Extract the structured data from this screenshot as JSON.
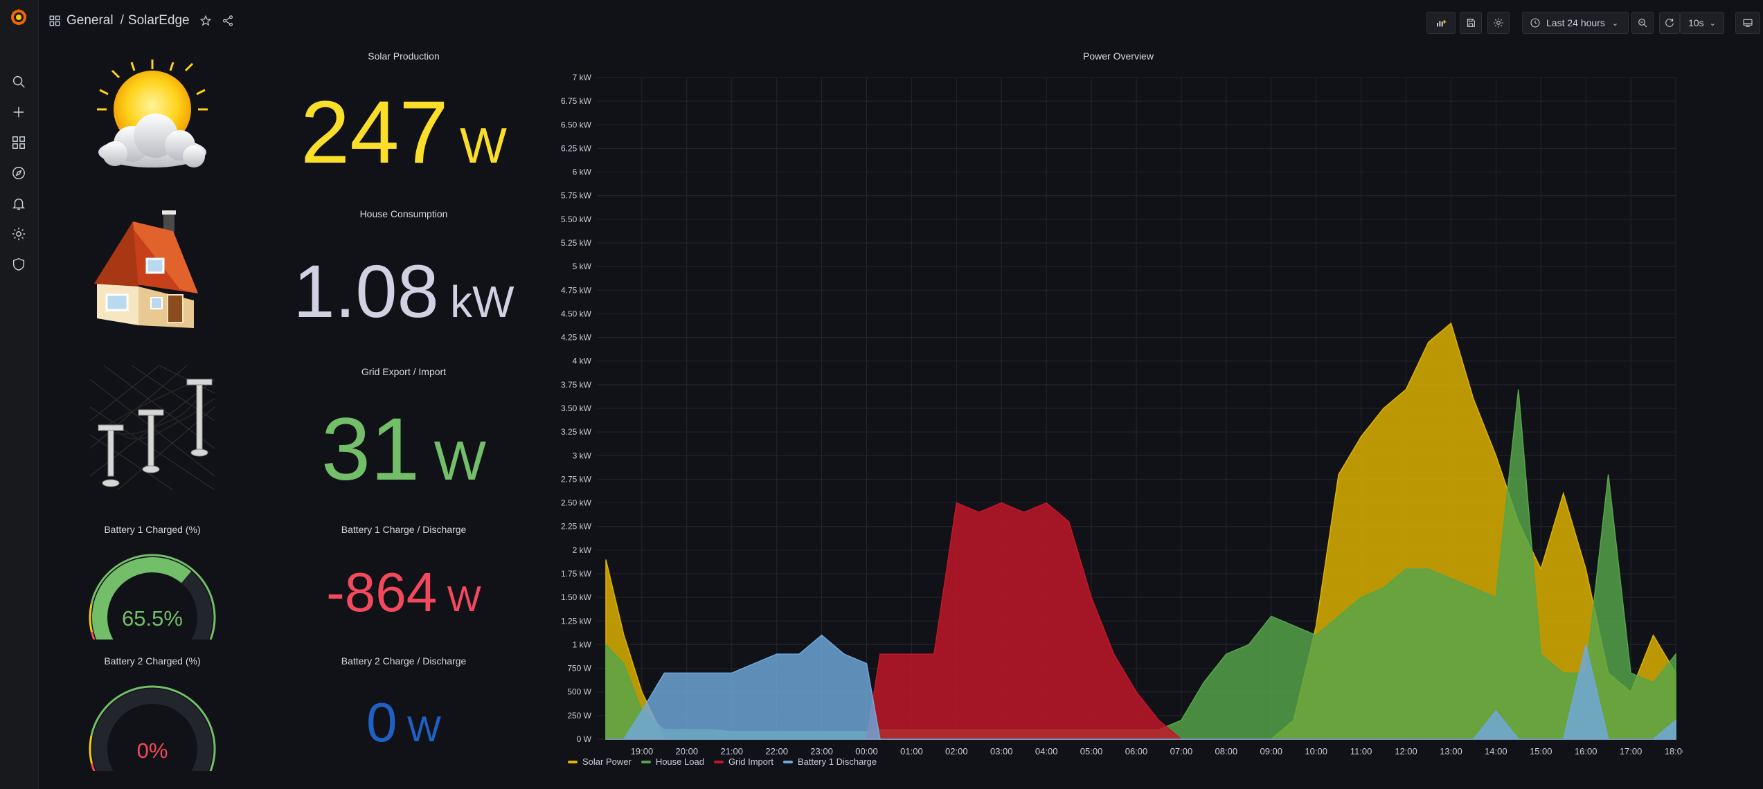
{
  "breadcrumb": {
    "folder": "General",
    "separator": "/",
    "dashboard": "SolarEdge"
  },
  "toolbar": {
    "time_range": "Last 24 hours",
    "refresh_interval": "10s"
  },
  "sidebar_icons": [
    "grafana-logo-icon",
    "search-icon",
    "plus-icon",
    "dashboards-icon",
    "explore-icon",
    "alert-bell-icon",
    "gear-icon",
    "shield-icon"
  ],
  "panels": {
    "solar": {
      "title": "Solar Production",
      "value": "247",
      "unit": "W",
      "color": "#fade2a"
    },
    "house": {
      "title": "House Consumption",
      "value": "1.08",
      "unit": "kW",
      "color": "#d0d1e2"
    },
    "grid": {
      "title": "Grid Export / Import",
      "value": "31",
      "unit": "W",
      "color": "#73bf69"
    },
    "bat1_charge": {
      "title": "Battery 1 Charge / Discharge",
      "value": "-864",
      "unit": "W",
      "color": "#f2495c"
    },
    "bat2_charge": {
      "title": "Battery 2 Charge / Discharge",
      "value": "0",
      "unit": "W",
      "color": "#1f60c4"
    },
    "bat1_gauge": {
      "title": "Battery 1 Charged (%)",
      "value": "65.5%",
      "percent": 65.5,
      "color": "#73bf69"
    },
    "bat2_gauge": {
      "title": "Battery 2 Charged (%)",
      "value": "0%",
      "percent": 0,
      "color": "#f2495c"
    }
  },
  "chart_data": {
    "type": "area",
    "title": "Power Overview",
    "y_ticks": [
      "0 W",
      "250 W",
      "500 W",
      "750 W",
      "1 kW",
      "1.25 kW",
      "1.50 kW",
      "1.75 kW",
      "2 kW",
      "2.25 kW",
      "2.50 kW",
      "2.75 kW",
      "3 kW",
      "3.25 kW",
      "3.50 kW",
      "3.75 kW",
      "4 kW",
      "4.25 kW",
      "4.50 kW",
      "4.75 kW",
      "5 kW",
      "5.25 kW",
      "5.50 kW",
      "5.75 kW",
      "6 kW",
      "6.25 kW",
      "6.50 kW",
      "6.75 kW",
      "7 kW"
    ],
    "ylim": [
      0,
      7000
    ],
    "x_ticks": [
      "19:00",
      "20:00",
      "21:00",
      "22:00",
      "23:00",
      "00:00",
      "01:00",
      "02:00",
      "03:00",
      "04:00",
      "05:00",
      "06:00",
      "07:00",
      "08:00",
      "09:00",
      "10:00",
      "11:00",
      "12:00",
      "13:00",
      "14:00",
      "15:00",
      "16:00",
      "17:00",
      "18:00"
    ],
    "x_hours": [
      18.2,
      18.6,
      19,
      19.5,
      20,
      20.5,
      21,
      21.5,
      22,
      22.5,
      23,
      23.5,
      24,
      24.3,
      24.5,
      25,
      25.5,
      26,
      26.5,
      27,
      27.5,
      28,
      28.5,
      29,
      29.5,
      30,
      30.5,
      31,
      31.5,
      32,
      32.5,
      33,
      33.5,
      34,
      34.5,
      35,
      35.5,
      36,
      36.5,
      37,
      37.5,
      38,
      38.5,
      39,
      39.5,
      40,
      40.5,
      41,
      41.5,
      42
    ],
    "grid": true,
    "legend_position": "bottom-left",
    "series": [
      {
        "name": "Solar Power",
        "color": "#e0b400",
        "values": [
          1900,
          1100,
          500,
          0,
          0,
          0,
          0,
          0,
          0,
          0,
          0,
          0,
          0,
          0,
          0,
          0,
          0,
          0,
          0,
          0,
          0,
          0,
          0,
          0,
          0,
          0,
          0,
          0,
          0,
          0,
          0,
          0,
          200,
          1200,
          2800,
          3200,
          3500,
          3700,
          4200,
          4400,
          3600,
          3000,
          2300,
          1800,
          2600,
          1800,
          700,
          500,
          1100,
          700
        ]
      },
      {
        "name": "House Load",
        "color": "#56a64b",
        "values": [
          1000,
          800,
          300,
          100,
          100,
          100,
          80,
          80,
          80,
          80,
          80,
          80,
          80,
          100,
          100,
          100,
          100,
          100,
          100,
          100,
          100,
          100,
          100,
          100,
          100,
          100,
          100,
          200,
          600,
          900,
          1000,
          1300,
          1200,
          1100,
          1300,
          1500,
          1600,
          1800,
          1800,
          1700,
          1600,
          1500,
          3700,
          900,
          700,
          700,
          2800,
          700,
          600,
          900
        ]
      },
      {
        "name": "Grid Import",
        "color": "#c4162a",
        "values": [
          0,
          0,
          0,
          0,
          0,
          0,
          0,
          0,
          0,
          0,
          0,
          0,
          0,
          900,
          900,
          900,
          900,
          2500,
          2400,
          2500,
          2400,
          2500,
          2300,
          1500,
          900,
          500,
          200,
          0,
          0,
          0,
          0,
          0,
          0,
          0,
          0,
          0,
          0,
          0,
          0,
          0,
          0,
          0,
          0,
          0,
          0,
          0,
          0,
          0,
          0,
          0
        ]
      },
      {
        "name": "Battery 1 Discharge",
        "color": "#6fa8dc",
        "values": [
          0,
          0,
          300,
          700,
          700,
          700,
          700,
          800,
          900,
          900,
          1100,
          900,
          800,
          0,
          0,
          0,
          0,
          0,
          0,
          0,
          0,
          0,
          0,
          0,
          0,
          0,
          0,
          0,
          0,
          0,
          0,
          0,
          0,
          0,
          0,
          0,
          0,
          0,
          0,
          0,
          0,
          300,
          0,
          0,
          0,
          1000,
          0,
          0,
          0,
          200
        ]
      }
    ]
  }
}
